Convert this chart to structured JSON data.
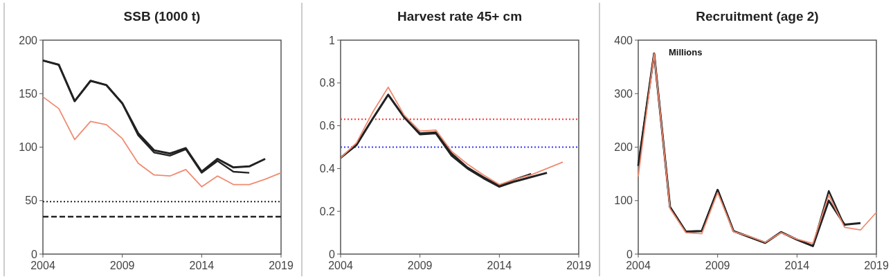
{
  "chart_data": [
    {
      "type": "line",
      "title": "SSB (1000 t)",
      "xlim": [
        2004,
        2019
      ],
      "xticks": [
        2004,
        2009,
        2014,
        2019
      ],
      "ylim": [
        0,
        200
      ],
      "yticks": [
        0,
        50,
        100,
        150,
        200
      ],
      "grid": false,
      "series": [
        {
          "color": "#222222",
          "x": [
            2004,
            2005,
            2006,
            2007,
            2008,
            2009,
            2010,
            2011,
            2012,
            2013,
            2014,
            2015,
            2016,
            2017,
            2018
          ],
          "values": [
            181,
            177,
            143,
            162,
            158,
            141,
            113,
            97,
            94,
            99,
            77,
            89,
            81,
            82,
            89
          ]
        },
        {
          "color": "#222222",
          "x": [
            2004,
            2005,
            2006,
            2007,
            2008,
            2009,
            2010,
            2011,
            2012,
            2013,
            2014,
            2015,
            2016,
            2017
          ],
          "values": [
            181,
            177,
            143,
            162,
            158,
            141,
            111,
            95,
            92,
            98,
            76,
            87,
            77,
            76
          ]
        },
        {
          "color": "#f08a70",
          "x": [
            2004,
            2005,
            2006,
            2007,
            2008,
            2009,
            2010,
            2011,
            2012,
            2013,
            2014,
            2015,
            2016,
            2017,
            2018,
            2019
          ],
          "values": [
            147,
            136,
            107,
            124,
            121,
            108,
            85,
            74,
            73,
            79,
            63,
            73,
            65,
            65,
            70,
            76
          ]
        }
      ],
      "ref_lines": [
        {
          "axis": "y",
          "value": 49,
          "color": "#222222",
          "line_style": "dotted"
        },
        {
          "axis": "y",
          "value": 35,
          "color": "#222222",
          "line_style": "dashed"
        }
      ]
    },
    {
      "type": "line",
      "title": "Harvest rate 45+ cm",
      "xlim": [
        2004,
        2019
      ],
      "xticks": [
        2004,
        2009,
        2014,
        2019
      ],
      "ylim": [
        0,
        1
      ],
      "yticks": [
        0,
        0.2,
        0.4,
        0.6,
        0.8,
        1
      ],
      "grid": false,
      "series": [
        {
          "color": "#222222",
          "x": [
            2004,
            2005,
            2006,
            2007,
            2008,
            2009,
            2010,
            2011,
            2012,
            2013,
            2014,
            2015,
            2016,
            2017
          ],
          "values": [
            0.45,
            0.51,
            0.63,
            0.745,
            0.64,
            0.56,
            0.565,
            0.46,
            0.4,
            0.355,
            0.315,
            0.34,
            0.36,
            0.38
          ]
        },
        {
          "color": "#222222",
          "x": [
            2004,
            2005,
            2006,
            2007,
            2008,
            2009,
            2010,
            2011,
            2012,
            2013,
            2014,
            2015,
            2016
          ],
          "values": [
            0.45,
            0.51,
            0.63,
            0.745,
            0.64,
            0.565,
            0.57,
            0.47,
            0.405,
            0.36,
            0.32,
            0.35,
            0.375
          ]
        },
        {
          "color": "#f08a70",
          "x": [
            2004,
            2005,
            2006,
            2007,
            2008,
            2009,
            2010,
            2011,
            2012,
            2013,
            2014,
            2015,
            2016,
            2017,
            2018
          ],
          "values": [
            0.45,
            0.52,
            0.66,
            0.78,
            0.65,
            0.575,
            0.58,
            0.48,
            0.42,
            0.37,
            0.325,
            0.35,
            0.37,
            0.4,
            0.43
          ]
        }
      ],
      "ref_lines": [
        {
          "axis": "y",
          "value": 0.63,
          "color": "#ff3333",
          "line_style": "dotted"
        },
        {
          "axis": "y",
          "value": 0.5,
          "color": "#3333ff",
          "line_style": "dotted"
        }
      ]
    },
    {
      "type": "line",
      "title": "Recruitment (age 2)",
      "xlim": [
        2004,
        2019
      ],
      "xticks": [
        2004,
        2009,
        2014,
        2019
      ],
      "ylim": [
        0,
        400
      ],
      "yticks": [
        0,
        100,
        200,
        300,
        400
      ],
      "grid": false,
      "annotations": [
        "Millions"
      ],
      "series": [
        {
          "color": "#222222",
          "x": [
            2004,
            2005,
            2006,
            2007,
            2008,
            2009,
            2010,
            2011,
            2012,
            2013,
            2014,
            2015,
            2016,
            2017,
            2018
          ],
          "values": [
            165,
            375,
            88,
            42,
            43,
            120,
            43,
            32,
            21,
            41,
            27,
            15,
            100,
            55,
            58
          ]
        },
        {
          "color": "#222222",
          "x": [
            2004,
            2005,
            2006,
            2007,
            2008,
            2009,
            2010,
            2011,
            2012,
            2013,
            2014,
            2015,
            2016,
            2017
          ],
          "values": [
            165,
            375,
            88,
            42,
            43,
            120,
            43,
            32,
            21,
            41,
            27,
            15,
            118,
            52
          ]
        },
        {
          "color": "#f08a70",
          "x": [
            2004,
            2005,
            2006,
            2007,
            2008,
            2009,
            2010,
            2011,
            2012,
            2013,
            2014,
            2015,
            2016,
            2017,
            2018,
            2019
          ],
          "values": [
            145,
            375,
            85,
            40,
            38,
            115,
            42,
            33,
            22,
            40,
            28,
            20,
            110,
            50,
            45,
            78
          ]
        }
      ]
    }
  ]
}
